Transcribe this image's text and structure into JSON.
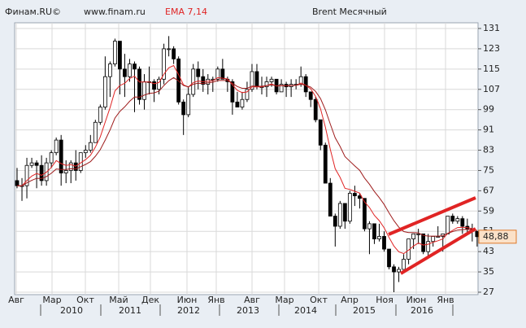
{
  "chart_data": {
    "type": "candlestick",
    "source": "Финам.RU©",
    "site": "www.finam.ru",
    "indicator": "EMA 7,14",
    "title": "Brent Месячный",
    "open": [
      71,
      69,
      69,
      77,
      78,
      77,
      71,
      78,
      82,
      87,
      74,
      75,
      78,
      75,
      82,
      83,
      86,
      94,
      100,
      112,
      117,
      126,
      115,
      112,
      117,
      115,
      103,
      110,
      110,
      107,
      111,
      123,
      123,
      119,
      102,
      97,
      105,
      115,
      112,
      109,
      111,
      111,
      115,
      111,
      110,
      102,
      100,
      103,
      107,
      114,
      108,
      108,
      110,
      111,
      106,
      109,
      108,
      109,
      109,
      112,
      106,
      103,
      95,
      85,
      70,
      57,
      53,
      62,
      55,
      66,
      65,
      64,
      52,
      54,
      48,
      49,
      44,
      37,
      35,
      36,
      40,
      48,
      50,
      50,
      43,
      47,
      49,
      49,
      50,
      57,
      55,
      56,
      53,
      52,
      51
    ],
    "high": [
      76,
      72,
      80,
      80,
      79,
      81,
      80,
      83,
      88,
      89,
      79,
      79,
      83,
      82,
      85,
      89,
      95,
      101,
      120,
      118,
      127,
      126,
      121,
      119,
      118,
      116,
      113,
      116,
      111,
      112,
      125,
      128,
      124,
      120,
      103,
      108,
      117,
      118,
      115,
      113,
      112,
      116,
      119,
      112,
      111,
      106,
      106,
      110,
      117,
      117,
      112,
      112,
      112,
      111,
      111,
      110,
      111,
      111,
      116,
      113,
      106,
      104,
      95,
      86,
      72,
      58,
      63,
      62,
      67,
      69,
      66,
      64,
      55,
      54,
      54,
      51,
      44,
      38,
      37,
      42,
      48,
      50,
      52,
      50,
      50,
      49,
      53,
      50,
      57,
      58,
      57,
      57,
      56,
      54,
      51
    ],
    "low": [
      68,
      63,
      64,
      76,
      68,
      69,
      69,
      76,
      81,
      69,
      70,
      70,
      71,
      74,
      80,
      82,
      86,
      93,
      99,
      104,
      116,
      105,
      104,
      110,
      98,
      101,
      99,
      105,
      102,
      105,
      109,
      120,
      117,
      101,
      89,
      96,
      104,
      107,
      106,
      105,
      106,
      110,
      111,
      106,
      97,
      100,
      99,
      102,
      106,
      107,
      105,
      104,
      108,
      105,
      106,
      104,
      104,
      107,
      108,
      104,
      100,
      94,
      83,
      70,
      58,
      45,
      52,
      52,
      54,
      61,
      60,
      51,
      42,
      46,
      47,
      43,
      36,
      27,
      31,
      36,
      38,
      44,
      46,
      42,
      41,
      45,
      49,
      43,
      50,
      54,
      54,
      50,
      50,
      47,
      45
    ],
    "close": [
      69,
      69,
      77,
      78,
      77,
      71,
      78,
      82,
      87,
      74,
      75,
      78,
      75,
      82,
      83,
      86,
      94,
      100,
      112,
      117,
      126,
      115,
      112,
      117,
      115,
      103,
      110,
      110,
      107,
      111,
      123,
      123,
      119,
      102,
      97,
      105,
      115,
      112,
      109,
      111,
      111,
      115,
      111,
      110,
      102,
      100,
      103,
      107,
      114,
      108,
      108,
      110,
      111,
      106,
      109,
      108,
      109,
      109,
      112,
      106,
      103,
      95,
      85,
      70,
      57,
      53,
      62,
      55,
      66,
      65,
      64,
      52,
      54,
      48,
      49,
      44,
      37,
      35,
      36,
      40,
      48,
      50,
      50,
      43,
      47,
      49,
      49,
      50,
      57,
      55,
      56,
      53,
      52,
      51,
      48.88
    ],
    "last_label": "48,88",
    "up_color": "#ffffff",
    "down_color": "#000000",
    "series": [
      {
        "color": "#e02424",
        "values": [
          69,
          69,
          71,
          72.8,
          73.8,
          73.1,
          74.3,
          76.2,
          78.9,
          77.7,
          77.0,
          77.3,
          76.7,
          78.0,
          79.3,
          81.0,
          84.2,
          88.2,
          94.1,
          99.8,
          106.4,
          108.5,
          109.4,
          111.3,
          112.2,
          109.9,
          109.9,
          109.9,
          109.2,
          109.7,
          113.0,
          115.5,
          116.4,
          112.8,
          108.8,
          107.9,
          109.7,
          110.3,
          110.0,
          110.2,
          110.4,
          111.6,
          111.4,
          111.1,
          108.8,
          106.6,
          105.7,
          106.0,
          108.0,
          108.0,
          108.0,
          108.5,
          109.1,
          108.3,
          108.5,
          108.4,
          108.5,
          108.6,
          109.5,
          108.6,
          107.2,
          104.2,
          99.4,
          92.0,
          83.3,
          75.7,
          72.3,
          68.0,
          67.5,
          66.8,
          66.1,
          62.6,
          60.4,
          57.3,
          55.2,
          52.4,
          48.6,
          45.2,
          42.9,
          42.2,
          43.6,
          45.2,
          46.4,
          45.6,
          45.9,
          46.7,
          47.3,
          48.0,
          50.2,
          51.4,
          52.5,
          52.6,
          52.5,
          52.1,
          51.3
        ]
      },
      {
        "color": "#9e1b1b",
        "values": [
          69,
          69,
          70.1,
          71.1,
          71.9,
          71.8,
          72.6,
          73.9,
          75.6,
          75.4,
          75.4,
          75.7,
          75.6,
          76.5,
          77.4,
          78.5,
          80.6,
          83.2,
          87.0,
          91.0,
          95.7,
          98.3,
          100.1,
          102.3,
          104.0,
          103.9,
          104.7,
          105.4,
          105.6,
          106.3,
          108.5,
          110.4,
          111.6,
          110.3,
          108.5,
          108.0,
          109.0,
          109.4,
          109.3,
          109.6,
          109.8,
          110.5,
          110.5,
          110.5,
          109.4,
          108.1,
          107.4,
          107.4,
          108.3,
          108.2,
          108.2,
          108.5,
          108.8,
          108.4,
          108.5,
          108.4,
          108.5,
          108.6,
          109.0,
          108.6,
          107.9,
          106.2,
          103.4,
          98.9,
          93.3,
          87.9,
          84.5,
          80.5,
          78.6,
          76.8,
          75.1,
          72.0,
          69.6,
          66.7,
          64.3,
          61.6,
          58.3,
          55.2,
          52.6,
          50.9,
          50.5,
          50.5,
          50.4,
          49.4,
          49.1,
          49.1,
          49.1,
          49.2,
          50.2,
          50.9,
          51.5,
          51.7,
          51.8,
          51.7,
          51.3
        ]
      }
    ],
    "ylim": [
      27,
      131
    ],
    "yticks": [
      27,
      35,
      43,
      51,
      59,
      67,
      75,
      83,
      91,
      99,
      107,
      115,
      123,
      131
    ],
    "x_tick_labels": [
      "Авг",
      "Мар",
      "Окт",
      "Май",
      "Дек",
      "Июн",
      "Янв",
      "Авг",
      "Мар",
      "Окт",
      "Апр",
      "Ноя",
      "Июн",
      "Янв"
    ],
    "year_labels": [
      "2010",
      "2011",
      "2012",
      "2013",
      "2014",
      "2015",
      "2016"
    ],
    "grid": true
  }
}
